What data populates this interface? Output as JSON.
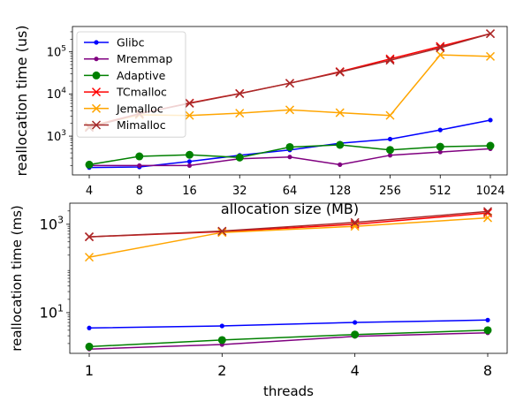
{
  "chart_data": [
    {
      "type": "line",
      "ylabel": "reallocation time (us)",
      "xlabel": "allocation size (MB)",
      "yscale": "log",
      "ylim": [
        120,
        400000
      ],
      "x": [
        "4",
        "8",
        "16",
        "32",
        "64",
        "128",
        "256",
        "512",
        "1024"
      ],
      "y_ticks": [
        {
          "value": 1000,
          "base": "10",
          "exp": "3"
        },
        {
          "value": 10000,
          "base": "10",
          "exp": "4"
        },
        {
          "value": 100000,
          "base": "10",
          "exp": "5"
        }
      ],
      "legend": {
        "placement": "upper-left"
      },
      "grid": false,
      "series": [
        {
          "name": "Glibc",
          "color": "#0000ff",
          "marker": "dot",
          "values": [
            180,
            185,
            250,
            350,
            470,
            680,
            850,
            1400,
            2400
          ]
        },
        {
          "name": "Mremmap",
          "color": "#800080",
          "marker": "dot",
          "values": [
            200,
            200,
            200,
            290,
            320,
            210,
            350,
            420,
            500
          ]
        },
        {
          "name": "Adaptive",
          "color": "#008000",
          "marker": "circle",
          "values": [
            210,
            330,
            360,
            310,
            550,
            620,
            470,
            560,
            590
          ]
        },
        {
          "name": "TCmalloc",
          "color": "#ff0000",
          "marker": "x",
          "values": [
            1700,
            3400,
            6100,
            10300,
            18000,
            34000,
            68000,
            135000,
            270000
          ]
        },
        {
          "name": "Jemalloc",
          "color": "#ffa500",
          "marker": "x",
          "values": [
            1700,
            3200,
            3100,
            3500,
            4200,
            3600,
            3100,
            85000,
            78000
          ]
        },
        {
          "name": "Mimalloc",
          "color": "#a52a2a",
          "marker": "x",
          "values": [
            1600,
            3400,
            6000,
            10200,
            18000,
            33000,
            63000,
            125000,
            270000
          ]
        }
      ]
    },
    {
      "type": "line",
      "ylabel": "reallocation time (ms)",
      "xlabel": "threads",
      "yscale": "log",
      "ylim": [
        1.2,
        3000
      ],
      "x": [
        "1",
        "2",
        "4",
        "8"
      ],
      "y_ticks": [
        {
          "value": 10,
          "base": "10",
          "exp": "1"
        },
        {
          "value": 1000,
          "base": "10",
          "exp": "3"
        }
      ],
      "grid": false,
      "series": [
        {
          "name": "Glibc",
          "color": "#0000ff",
          "marker": "dot",
          "values": [
            4.5,
            5.0,
            6.0,
            6.8
          ]
        },
        {
          "name": "Mremmap",
          "color": "#800080",
          "marker": "dot",
          "values": [
            1.5,
            1.9,
            2.9,
            3.5
          ]
        },
        {
          "name": "Adaptive",
          "color": "#008000",
          "marker": "circle",
          "values": [
            1.7,
            2.4,
            3.2,
            4.0
          ]
        },
        {
          "name": "TCmalloc",
          "color": "#ff0000",
          "marker": "x",
          "values": [
            520,
            680,
            1000,
            1800
          ]
        },
        {
          "name": "Jemalloc",
          "color": "#ffa500",
          "marker": "x",
          "values": [
            180,
            650,
            900,
            1400
          ]
        },
        {
          "name": "Mimalloc",
          "color": "#a52a2a",
          "marker": "x",
          "values": [
            520,
            700,
            1100,
            1950
          ]
        }
      ]
    }
  ]
}
